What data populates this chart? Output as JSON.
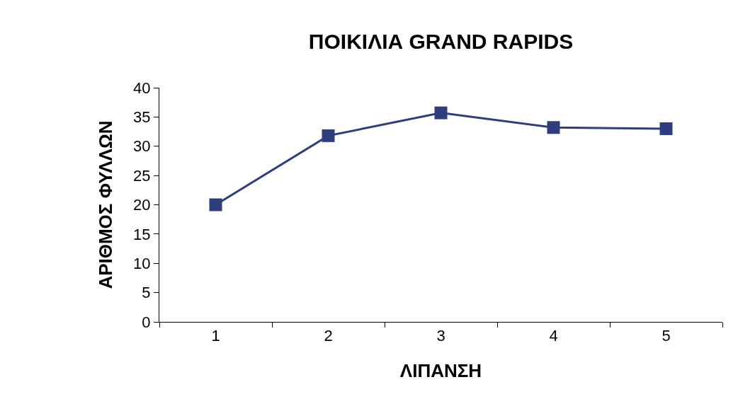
{
  "chart_data": {
    "type": "line",
    "title": "ΠΟΙΚΙΛΙΑ GRAND RAPIDS",
    "xlabel": "ΛΙΠΑΝΣΗ",
    "ylabel": "ΑΡΙΘΜΟΣ ΦΥΛΛΩΝ",
    "categories": [
      "1",
      "2",
      "3",
      "4",
      "5"
    ],
    "series": [
      {
        "color": "#2e3d7e",
        "values": [
          20,
          31.8,
          35.7,
          33.2,
          33
        ]
      }
    ],
    "ylim": [
      0,
      40
    ],
    "yticks": [
      0,
      5,
      10,
      15,
      20,
      25,
      30,
      35,
      40
    ],
    "grid": false,
    "marker": "square",
    "line_style": "solid"
  }
}
